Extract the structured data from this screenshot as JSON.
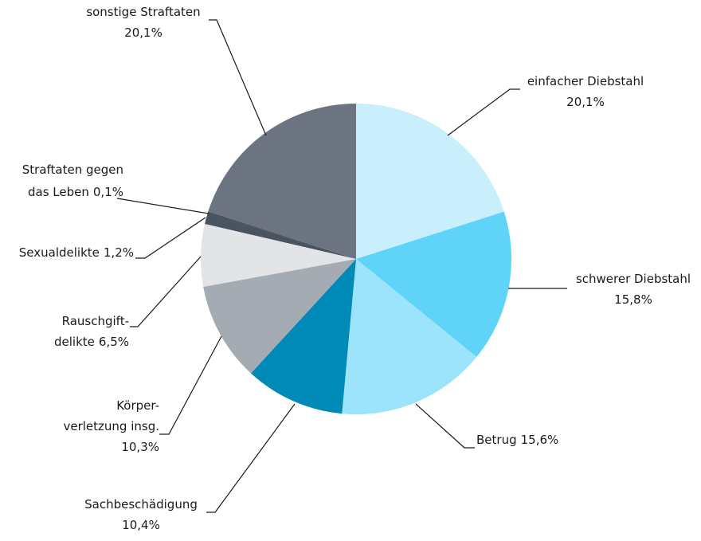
{
  "chart_data": {
    "type": "pie",
    "categories": [
      [
        "einfacher Diebstahl"
      ],
      [
        "schwerer Diebstahl"
      ],
      [
        "Betrug"
      ],
      [
        "Sachbeschädigung"
      ],
      [
        "Körper-",
        "verletzung insg."
      ],
      [
        "Rauschgift-",
        "delikte"
      ],
      [
        "Sexualdelikte"
      ],
      [
        "Straftaten gegen",
        "das Leben"
      ],
      [
        "sonstige Straftaten"
      ]
    ],
    "values": [
      20.1,
      15.8,
      15.6,
      10.4,
      10.3,
      6.5,
      1.2,
      0.1,
      20.1
    ],
    "value_labels": [
      "20,1%",
      "15,8%",
      "15,6%",
      "10,4%",
      "10,3%",
      "6,5%",
      "1,2%",
      "0,1%",
      "20,1%"
    ],
    "colors": [
      "#c8effb",
      "#5fd4f8",
      "#9be4fb",
      "#008ab8",
      "#a4abb3",
      "#e2e4e8",
      "#4a5360",
      "#3a4049",
      "#6b7480"
    ]
  }
}
